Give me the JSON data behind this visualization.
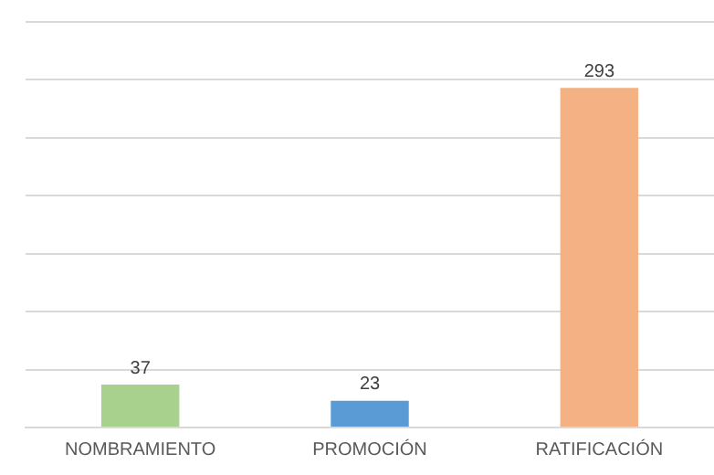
{
  "chart_data": {
    "type": "bar",
    "categories": [
      "NOMBRAMIENTO",
      "PROMOCIÓN",
      "RATIFICACIÓN"
    ],
    "values": [
      37,
      23,
      293
    ],
    "colors": [
      "#a9d18e",
      "#5b9bd5",
      "#f4b183"
    ],
    "ylim": [
      0,
      350
    ],
    "yticks": [
      0,
      50,
      100,
      150,
      200,
      250,
      300,
      350
    ],
    "grid": "y",
    "tick_labels": "x",
    "data_labels": true,
    "legend": false
  }
}
